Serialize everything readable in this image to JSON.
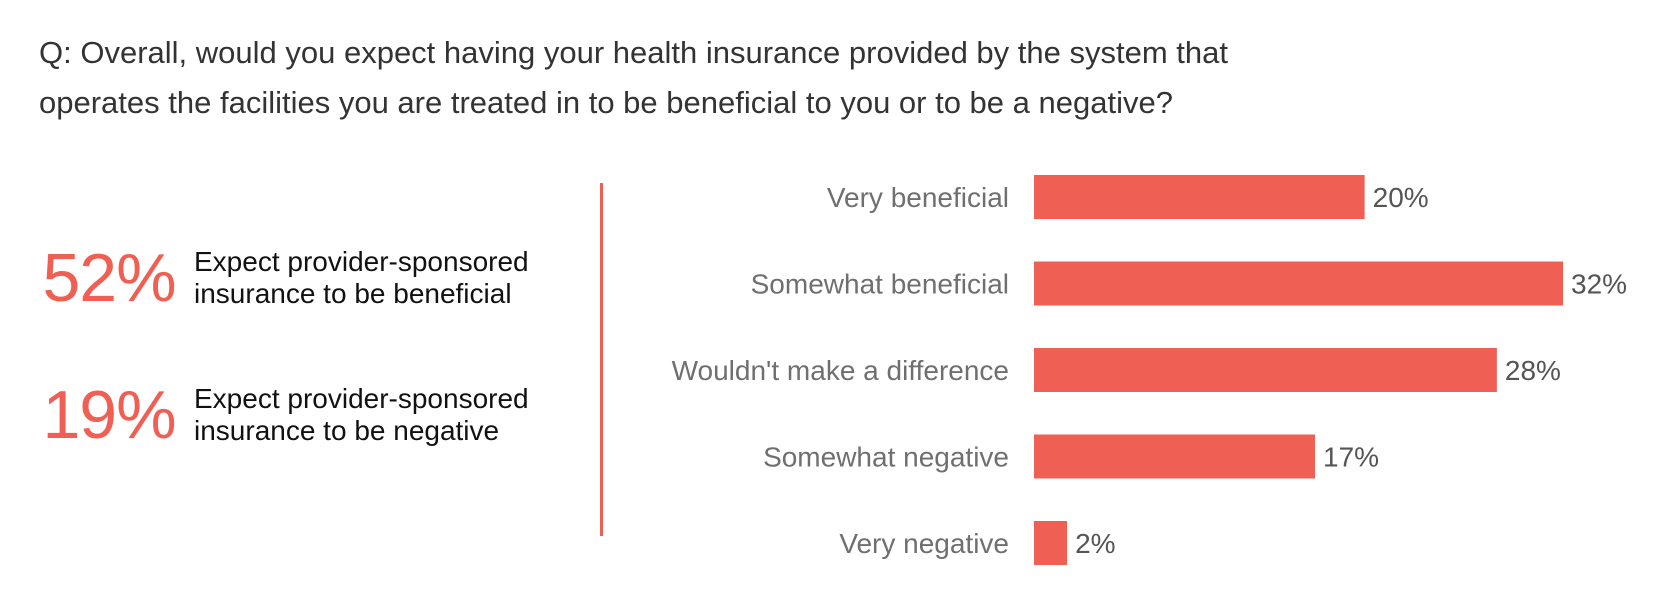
{
  "question": "Q: Overall, would you expect having your health insurance provided by the system that\noperates the facilities you are treated in to be beneficial to you or to be a negative?",
  "summary": [
    {
      "percent": "52%",
      "text": "Expect provider-sponsored\ninsurance to be beneficial"
    },
    {
      "percent": "19%",
      "text": "Expect provider-sponsored\ninsurance to be negative"
    }
  ],
  "colors": {
    "accent": "#ef5f53",
    "bar": "#ef5f53",
    "category_text": "#6f6f6f",
    "value_text": "#555555"
  },
  "chart_data": {
    "type": "bar",
    "orientation": "horizontal",
    "categories": [
      "Very beneficial",
      "Somewhat beneficial",
      "Wouldn't make a difference",
      "Somewhat negative",
      "Very negative"
    ],
    "values": [
      20,
      32,
      28,
      17,
      2
    ],
    "value_labels": [
      "20%",
      "32%",
      "28%",
      "17%",
      "2%"
    ],
    "unit": "%",
    "xlim": [
      0,
      32
    ],
    "grid": false,
    "legend": "none"
  }
}
